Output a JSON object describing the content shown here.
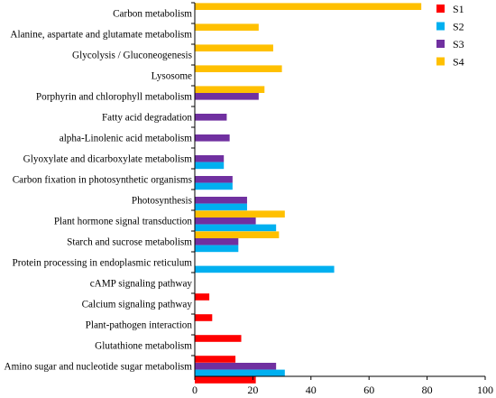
{
  "chart_data": {
    "type": "bar",
    "orientation": "horizontal",
    "categories": [
      "Carbon metabolism",
      "Alanine, aspartate and glutamate metabolism",
      "Glycolysis / Gluconeogenesis",
      "Lysosome",
      "Porphyrin and chlorophyll metabolism",
      "Fatty acid degradation",
      "alpha-Linolenic acid metabolism",
      "Glyoxylate and dicarboxylate metabolism",
      "Carbon fixation in photosynthetic organisms",
      "Photosynthesis",
      "Plant hormone signal transduction",
      "Starch and sucrose metabolism",
      "Protein processing in endoplasmic reticulum",
      "cAMP signaling pathway",
      "Calcium signaling pathway",
      "Plant-pathogen interaction",
      "Glutathione metabolism",
      "Amino sugar and nucleotide sugar metabolism"
    ],
    "series": [
      {
        "name": "S1",
        "color": "#ff0000",
        "values": [
          0,
          0,
          0,
          0,
          0,
          0,
          0,
          0,
          0,
          0,
          0,
          0,
          0,
          5,
          6,
          16,
          14,
          21
        ]
      },
      {
        "name": "S2",
        "color": "#00b0f0",
        "values": [
          0,
          0,
          0,
          0,
          0,
          0,
          0,
          10,
          13,
          18,
          28,
          15,
          48,
          0,
          0,
          0,
          0,
          31
        ]
      },
      {
        "name": "S3",
        "color": "#7030a0",
        "values": [
          0,
          0,
          0,
          0,
          22,
          11,
          12,
          10,
          13,
          18,
          21,
          15,
          0,
          0,
          0,
          0,
          0,
          28
        ]
      },
      {
        "name": "S4",
        "color": "#ffc000",
        "values": [
          78,
          22,
          27,
          30,
          24,
          0,
          0,
          0,
          0,
          0,
          31,
          29,
          0,
          0,
          0,
          0,
          0,
          0
        ]
      }
    ],
    "xlim": [
      0,
      100
    ],
    "xticks": [
      0,
      20,
      40,
      60,
      80,
      100
    ],
    "title": "",
    "xlabel": "",
    "ylabel": "",
    "legend_position": "top-right",
    "grid": false
  }
}
